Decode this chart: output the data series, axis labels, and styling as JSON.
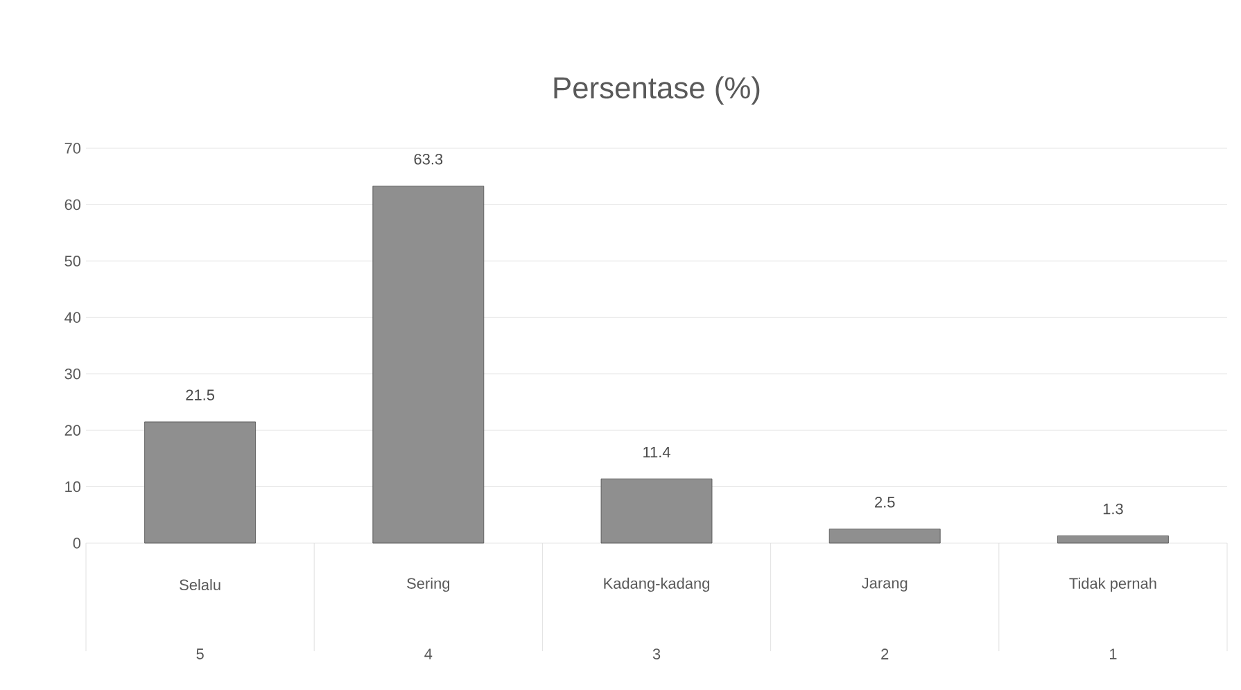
{
  "chart_data": {
    "type": "bar",
    "title": "Persentase (%)",
    "categories": [
      "Selalu",
      "Sering",
      "Kadang-kadang",
      "Jarang",
      "Tidak pernah"
    ],
    "values": [
      21.5,
      63.3,
      11.4,
      2.5,
      1.3
    ],
    "color": "#8f8f8f",
    "ylim": [
      0,
      70
    ],
    "yticks": [
      0,
      10,
      20,
      30,
      40,
      50,
      60,
      70
    ],
    "grid": "y",
    "data_labels": true,
    "annotations": [
      "5",
      "4",
      "3",
      "2",
      "1"
    ]
  }
}
